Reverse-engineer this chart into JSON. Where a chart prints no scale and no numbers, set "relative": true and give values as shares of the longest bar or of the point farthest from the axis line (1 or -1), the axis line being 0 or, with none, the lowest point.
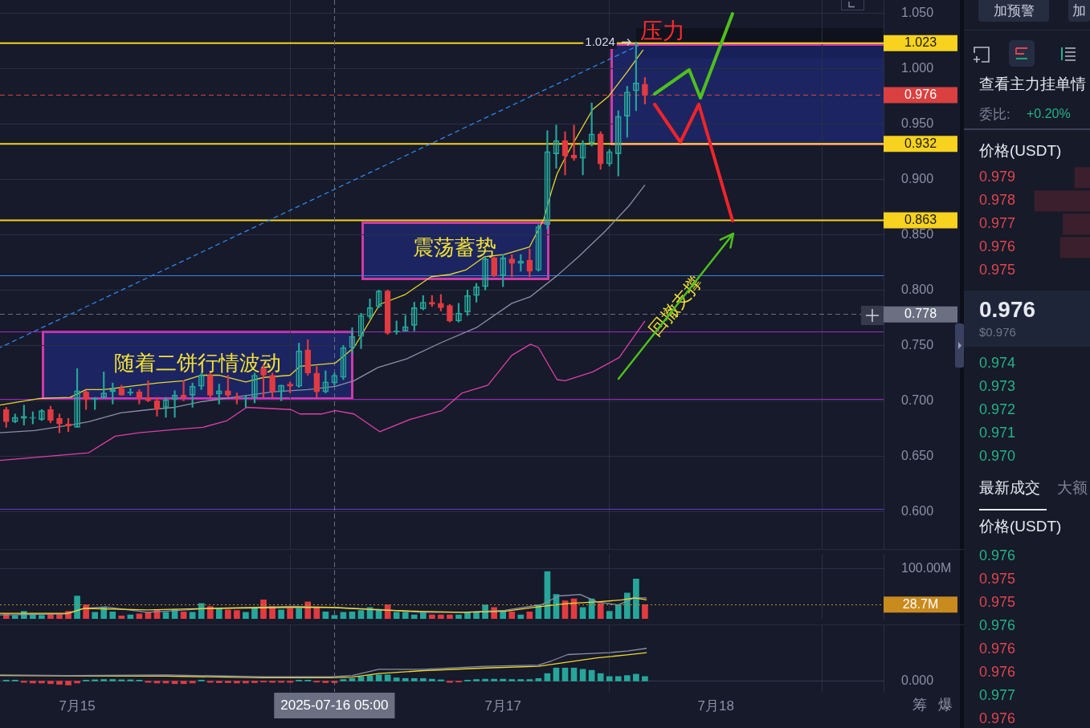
{
  "chart_data": [
    {
      "type": "candlestick",
      "x": [
        "2025-07-14T16:00",
        "2025-07-14T17:00",
        "2025-07-14T18:00",
        "2025-07-14T19:00",
        "2025-07-14T20:00",
        "2025-07-14T21:00",
        "2025-07-14T22:00",
        "2025-07-14T23:00",
        "2025-07-15T00:00",
        "2025-07-15T01:00",
        "2025-07-15T02:00",
        "2025-07-15T03:00",
        "2025-07-15T04:00",
        "2025-07-15T05:00",
        "2025-07-15T06:00",
        "2025-07-15T07:00",
        "2025-07-15T08:00",
        "2025-07-15T09:00",
        "2025-07-15T10:00",
        "2025-07-15T11:00",
        "2025-07-15T12:00",
        "2025-07-15T13:00",
        "2025-07-15T14:00",
        "2025-07-15T15:00",
        "2025-07-15T16:00",
        "2025-07-15T17:00",
        "2025-07-15T18:00",
        "2025-07-15T19:00",
        "2025-07-15T20:00",
        "2025-07-15T21:00",
        "2025-07-15T22:00",
        "2025-07-15T23:00",
        "2025-07-16T00:00",
        "2025-07-16T01:00",
        "2025-07-16T02:00",
        "2025-07-16T03:00",
        "2025-07-16T04:00",
        "2025-07-16T05:00",
        "2025-07-16T06:00",
        "2025-07-16T07:00",
        "2025-07-16T08:00",
        "2025-07-16T09:00",
        "2025-07-16T10:00",
        "2025-07-16T11:00",
        "2025-07-16T12:00",
        "2025-07-16T13:00",
        "2025-07-16T14:00",
        "2025-07-16T15:00",
        "2025-07-16T16:00",
        "2025-07-16T17:00",
        "2025-07-16T18:00",
        "2025-07-16T19:00",
        "2025-07-16T20:00",
        "2025-07-16T21:00",
        "2025-07-16T22:00",
        "2025-07-16T23:00",
        "2025-07-17T00:00",
        "2025-07-17T01:00",
        "2025-07-17T02:00",
        "2025-07-17T03:00",
        "2025-07-17T04:00",
        "2025-07-17T05:00",
        "2025-07-17T06:00",
        "2025-07-17T07:00",
        "2025-07-17T08:00",
        "2025-07-17T09:00",
        "2025-07-17T10:00",
        "2025-07-17T11:00",
        "2025-07-17T12:00",
        "2025-07-17T13:00",
        "2025-07-17T14:00",
        "2025-07-17T15:00",
        "2025-07-17T16:00"
      ],
      "ohlc": [
        [
          0.692,
          0.694,
          0.676,
          0.681
        ],
        [
          0.681,
          0.688,
          0.68,
          0.685
        ],
        [
          0.684,
          0.696,
          0.678,
          0.686
        ],
        [
          0.684,
          0.69,
          0.679,
          0.685
        ],
        [
          0.683,
          0.692,
          0.682,
          0.691
        ],
        [
          0.692,
          0.695,
          0.68,
          0.682
        ],
        [
          0.684,
          0.688,
          0.671,
          0.679
        ],
        [
          0.679,
          0.684,
          0.672,
          0.677
        ],
        [
          0.676,
          0.729,
          0.676,
          0.709
        ],
        [
          0.708,
          0.709,
          0.692,
          0.701
        ],
        [
          0.701,
          0.703,
          0.692,
          0.702
        ],
        [
          0.703,
          0.726,
          0.702,
          0.707
        ],
        [
          0.708,
          0.716,
          0.697,
          0.71
        ],
        [
          0.711,
          0.714,
          0.705,
          0.705
        ],
        [
          0.707,
          0.711,
          0.705,
          0.708
        ],
        [
          0.708,
          0.71,
          0.697,
          0.702
        ],
        [
          0.703,
          0.718,
          0.699,
          0.7
        ],
        [
          0.7,
          0.703,
          0.686,
          0.692
        ],
        [
          0.694,
          0.703,
          0.685,
          0.701
        ],
        [
          0.701,
          0.709,
          0.685,
          0.705
        ],
        [
          0.705,
          0.718,
          0.7,
          0.703
        ],
        [
          0.705,
          0.716,
          0.694,
          0.713
        ],
        [
          0.713,
          0.725,
          0.71,
          0.723
        ],
        [
          0.723,
          0.725,
          0.703,
          0.705
        ],
        [
          0.706,
          0.715,
          0.697,
          0.709
        ],
        [
          0.709,
          0.723,
          0.703,
          0.705
        ],
        [
          0.703,
          0.707,
          0.697,
          0.702
        ],
        [
          0.702,
          0.705,
          0.694,
          0.703
        ],
        [
          0.703,
          0.725,
          0.698,
          0.723
        ],
        [
          0.729,
          0.732,
          0.703,
          0.723
        ],
        [
          0.723,
          0.725,
          0.703,
          0.708
        ],
        [
          0.708,
          0.714,
          0.7,
          0.714
        ],
        [
          0.715,
          0.717,
          0.707,
          0.713
        ],
        [
          0.713,
          0.752,
          0.712,
          0.745
        ],
        [
          0.746,
          0.755,
          0.723,
          0.725
        ],
        [
          0.725,
          0.731,
          0.703,
          0.708
        ],
        [
          0.708,
          0.727,
          0.707,
          0.717
        ],
        [
          0.716,
          0.725,
          0.714,
          0.723
        ],
        [
          0.721,
          0.75,
          0.719,
          0.748
        ],
        [
          0.748,
          0.766,
          0.743,
          0.758
        ],
        [
          0.758,
          0.779,
          0.747,
          0.777
        ],
        [
          0.776,
          0.792,
          0.774,
          0.784
        ],
        [
          0.785,
          0.8,
          0.784,
          0.799
        ],
        [
          0.799,
          0.8,
          0.76,
          0.761
        ],
        [
          0.762,
          0.772,
          0.76,
          0.763
        ],
        [
          0.763,
          0.777,
          0.763,
          0.767
        ],
        [
          0.768,
          0.789,
          0.763,
          0.784
        ],
        [
          0.783,
          0.795,
          0.782,
          0.789
        ],
        [
          0.789,
          0.795,
          0.785,
          0.787
        ],
        [
          0.788,
          0.796,
          0.781,
          0.784
        ],
        [
          0.786,
          0.787,
          0.771,
          0.772
        ],
        [
          0.772,
          0.788,
          0.771,
          0.779
        ],
        [
          0.78,
          0.8,
          0.777,
          0.795
        ],
        [
          0.795,
          0.806,
          0.789,
          0.803
        ],
        [
          0.803,
          0.83,
          0.8,
          0.828
        ],
        [
          0.829,
          0.83,
          0.812,
          0.813
        ],
        [
          0.813,
          0.832,
          0.803,
          0.829
        ],
        [
          0.828,
          0.832,
          0.812,
          0.824
        ],
        [
          0.824,
          0.832,
          0.817,
          0.826
        ],
        [
          0.827,
          0.837,
          0.812,
          0.817
        ],
        [
          0.818,
          0.859,
          0.817,
          0.857
        ],
        [
          0.859,
          0.944,
          0.855,
          0.925
        ],
        [
          0.923,
          0.949,
          0.91,
          0.935
        ],
        [
          0.935,
          0.943,
          0.904,
          0.921
        ],
        [
          0.922,
          0.949,
          0.917,
          0.919
        ],
        [
          0.919,
          0.935,
          0.904,
          0.932
        ],
        [
          0.933,
          0.969,
          0.93,
          0.941
        ],
        [
          0.941,
          0.943,
          0.909,
          0.914
        ],
        [
          0.914,
          0.927,
          0.912,
          0.925
        ],
        [
          0.923,
          0.962,
          0.903,
          0.957
        ],
        [
          0.957,
          0.984,
          0.938,
          0.979
        ],
        [
          0.98,
          1.024,
          0.962,
          0.987
        ],
        [
          0.986,
          0.992,
          0.968,
          0.976
        ]
      ],
      "colors": [
        "#e13b41",
        "#26a69a",
        "#26a69a",
        "#26a69a",
        "#26a69a",
        "#e13b41",
        "#e13b41",
        "#e13b41",
        "#26a69a",
        "#e13b41",
        "#26a69a",
        "#26a69a",
        "#26a69a",
        "#e13b41",
        "#26a69a",
        "#e13b41",
        "#e13b41",
        "#e13b41",
        "#26a69a",
        "#26a69a",
        "#e13b41",
        "#26a69a",
        "#26a69a",
        "#e13b41",
        "#26a69a",
        "#e13b41",
        "#e13b41",
        "#26a69a",
        "#26a69a",
        "#e13b41",
        "#e13b41",
        "#26a69a",
        "#e13b41",
        "#26a69a",
        "#e13b41",
        "#e13b41",
        "#26a69a",
        "#26a69a",
        "#26a69a",
        "#26a69a",
        "#26a69a",
        "#26a69a",
        "#26a69a",
        "#e13b41",
        "#26a69a",
        "#26a69a",
        "#26a69a",
        "#26a69a",
        "#e13b41",
        "#e13b41",
        "#e13b41",
        "#26a69a",
        "#26a69a",
        "#26a69a",
        "#26a69a",
        "#e13b41",
        "#26a69a",
        "#e13b41",
        "#26a69a",
        "#e13b41",
        "#26a69a",
        "#26a69a",
        "#26a69a",
        "#e13b41",
        "#e13b41",
        "#26a69a",
        "#26a69a",
        "#e13b41",
        "#26a69a",
        "#26a69a",
        "#26a69a",
        "#26a69a",
        "#e13b41"
      ],
      "series": [
        {
          "type": "line",
          "color": "#e6d62c",
          "x": [
            "2025-07-14T15:18",
            "2025-07-14T19:48",
            "2025-07-14T23:12",
            "2025-07-15T01:00",
            "2025-07-15T03:00",
            "2025-07-15T07:00",
            "2025-07-15T09:06",
            "2025-07-15T12:00",
            "2025-07-15T14:00",
            "2025-07-15T16:00",
            "2025-07-15T19:00",
            "2025-07-15T21:00",
            "2025-07-16T00:00",
            "2025-07-16T01:06",
            "2025-07-16T05:06",
            "2025-07-16T07:12",
            "2025-07-16T08:06",
            "2025-07-16T10:06",
            "2025-07-16T13:00",
            "2025-07-16T15:54",
            "2025-07-16T18:00",
            "2025-07-16T19:48",
            "2025-07-16T21:54",
            "2025-07-17T00:06",
            "2025-07-17T03:00",
            "2025-07-17T04:36",
            "2025-07-17T05:30",
            "2025-07-17T06:06",
            "2025-07-17T07:18",
            "2025-07-17T10:06",
            "2025-07-17T11:54",
            "2025-07-17T14:00",
            "2025-07-17T15:48"
          ],
          "values": [
            0.696,
            0.702,
            0.703,
            0.71,
            0.71,
            0.714,
            0.716,
            0.718,
            0.723,
            0.723,
            0.717,
            0.721,
            0.723,
            0.731,
            0.734,
            0.748,
            0.76,
            0.787,
            0.796,
            0.812,
            0.814,
            0.818,
            0.83,
            0.832,
            0.839,
            0.864,
            0.89,
            0.905,
            0.924,
            0.963,
            0.975,
            0.997,
            1.017
          ]
        },
        {
          "type": "line",
          "color": "#8990a8",
          "x": [
            "2025-07-14T15:18",
            "2025-07-14T19:12",
            "2025-07-14T23:12",
            "2025-07-15T01:18",
            "2025-07-15T04:54",
            "2025-07-15T08:12",
            "2025-07-15T11:00",
            "2025-07-15T13:54",
            "2025-07-15T18:30",
            "2025-07-15T22:06",
            "2025-07-16T02:00",
            "2025-07-16T05:06",
            "2025-07-16T07:12",
            "2025-07-16T09:54",
            "2025-07-16T13:12",
            "2025-07-16T16:54",
            "2025-07-16T21:00",
            "2025-07-17T01:00",
            "2025-07-17T03:06",
            "2025-07-17T06:06",
            "2025-07-17T08:30",
            "2025-07-17T11:30",
            "2025-07-17T14:12",
            "2025-07-17T16:00"
          ],
          "values": [
            0.671,
            0.673,
            0.678,
            0.681,
            0.689,
            0.692,
            0.694,
            0.699,
            0.704,
            0.708,
            0.71,
            0.713,
            0.718,
            0.73,
            0.738,
            0.752,
            0.766,
            0.788,
            0.794,
            0.813,
            0.83,
            0.853,
            0.876,
            0.895
          ]
        },
        {
          "type": "line",
          "color": "#e03fa8",
          "x": [
            "2025-07-14T15:18",
            "2025-07-15T01:18",
            "2025-07-15T04:18",
            "2025-07-15T07:00",
            "2025-07-15T11:00",
            "2025-07-15T14:12",
            "2025-07-15T16:54",
            "2025-07-15T19:06",
            "2025-07-16T00:06",
            "2025-07-16T01:06",
            "2025-07-16T03:30",
            "2025-07-16T05:06",
            "2025-07-16T07:12",
            "2025-07-16T10:06",
            "2025-07-16T13:30",
            "2025-07-16T17:06",
            "2025-07-16T19:24",
            "2025-07-16T22:18",
            "2025-07-17T01:00",
            "2025-07-17T03:06",
            "2025-07-17T04:00",
            "2025-07-17T06:06",
            "2025-07-17T07:00",
            "2025-07-17T10:06",
            "2025-07-17T13:06",
            "2025-07-17T16:00"
          ],
          "values": [
            0.646,
            0.653,
            0.668,
            0.671,
            0.674,
            0.676,
            0.682,
            0.694,
            0.692,
            0.688,
            0.688,
            0.691,
            0.688,
            0.672,
            0.683,
            0.691,
            0.707,
            0.714,
            0.741,
            0.751,
            0.748,
            0.719,
            0.718,
            0.726,
            0.739,
            0.772
          ]
        },
        {
          "type": "line",
          "color": "#2f86e8",
          "line_style": "dashed",
          "x": [
            "2025-07-14T15:18",
            "2025-07-17T15:18"
          ],
          "values": [
            0.748,
            1.021
          ]
        }
      ],
      "xlim": [
        "2025-07-14T15:18",
        "2025-07-18T18:54"
      ],
      "xticks": [
        {
          "value": "2025-07-15",
          "label": null
        },
        {
          "value": "2025-07-17",
          "label": null
        },
        {
          "value": "2025-07-18",
          "label": null
        }
      ],
      "ylim": [
        0.566,
        1.062
      ],
      "yticks": [
        {
          "value": 0.6,
          "label": "0.600"
        },
        {
          "value": 0.65,
          "label": "0.650"
        },
        {
          "value": 0.7,
          "label": "0.700"
        },
        {
          "value": 0.75,
          "label": "0.750"
        },
        {
          "value": 0.8,
          "label": "0.800"
        },
        {
          "value": 0.85,
          "label": "0.850"
        },
        {
          "value": 0.9,
          "label": "0.900"
        },
        {
          "value": 0.95,
          "label": "0.950"
        },
        {
          "value": 1,
          "label": "1.000"
        },
        {
          "value": 1.05,
          "label": "1.050"
        }
      ],
      "grid": true,
      "tick_labels": "y",
      "ref_lines": [
        {
          "axis": "y",
          "value": 1.023,
          "label": "1.023",
          "color": "#f7d21e"
        },
        {
          "axis": "y",
          "value": 0.976,
          "label": "0.976",
          "color": "#d9403f",
          "line_style": "dashed"
        },
        {
          "axis": "y",
          "value": 0.932,
          "label": "0.932",
          "color": "#f7d21e"
        },
        {
          "axis": "y",
          "value": 0.863,
          "label": "0.863",
          "color": "#f7d21e"
        },
        {
          "axis": "y",
          "value": 0.813,
          "color": "#3f7ee0"
        },
        {
          "axis": "y",
          "value": 0.778,
          "label": "0.778",
          "color": "#6a6f82",
          "line_style": "dashed"
        },
        {
          "axis": "y",
          "value": 0.762,
          "color": "#a628c9"
        },
        {
          "axis": "y",
          "value": 0.701,
          "color": "#a628c9"
        },
        {
          "axis": "y",
          "value": 0.602,
          "color": "#6c35d1"
        },
        {
          "axis": "x",
          "value": "2025-07-16T05:00",
          "color": "#6a6f82",
          "line_style": "dashed"
        }
      ],
      "annotations": [
        {
          "text": "1.024",
          "x": "2025-07-17T15:00",
          "y": 1.024
        },
        {
          "text": "压力",
          "x": "2025-07-17T18:00",
          "y": 1.023
        },
        "随着二饼行情波动",
        "震荡蓄势",
        "回撤支撑"
      ]
    },
    {
      "type": "bar",
      "x": [
        "2025-07-14T16:00",
        "2025-07-14T17:00",
        "2025-07-14T18:00",
        "2025-07-14T19:00",
        "2025-07-14T20:00",
        "2025-07-14T21:00",
        "2025-07-14T22:00",
        "2025-07-14T23:00",
        "2025-07-15T00:00",
        "2025-07-15T01:00",
        "2025-07-15T02:00",
        "2025-07-15T03:00",
        "2025-07-15T04:00",
        "2025-07-15T05:00",
        "2025-07-15T06:00",
        "2025-07-15T07:00",
        "2025-07-15T08:00",
        "2025-07-15T09:00",
        "2025-07-15T10:00",
        "2025-07-15T11:00",
        "2025-07-15T12:00",
        "2025-07-15T13:00",
        "2025-07-15T14:00",
        "2025-07-15T15:00",
        "2025-07-15T16:00",
        "2025-07-15T17:00",
        "2025-07-15T18:00",
        "2025-07-15T19:00",
        "2025-07-15T20:00",
        "2025-07-15T21:00",
        "2025-07-15T22:00",
        "2025-07-15T23:00",
        "2025-07-16T00:00",
        "2025-07-16T01:00",
        "2025-07-16T02:00",
        "2025-07-16T03:00",
        "2025-07-16T04:00",
        "2025-07-16T05:00",
        "2025-07-16T06:00",
        "2025-07-16T07:00",
        "2025-07-16T08:00",
        "2025-07-16T09:00",
        "2025-07-16T10:00",
        "2025-07-16T11:00",
        "2025-07-16T12:00",
        "2025-07-16T13:00",
        "2025-07-16T14:00",
        "2025-07-16T15:00",
        "2025-07-16T16:00",
        "2025-07-16T17:00",
        "2025-07-16T18:00",
        "2025-07-16T19:00",
        "2025-07-16T20:00",
        "2025-07-16T21:00",
        "2025-07-16T22:00",
        "2025-07-16T23:00",
        "2025-07-17T00:00",
        "2025-07-17T01:00",
        "2025-07-17T02:00",
        "2025-07-17T03:00",
        "2025-07-17T04:00",
        "2025-07-17T05:00",
        "2025-07-17T06:00",
        "2025-07-17T07:00",
        "2025-07-17T08:00",
        "2025-07-17T09:00",
        "2025-07-17T10:00",
        "2025-07-17T11:00",
        "2025-07-17T12:00",
        "2025-07-17T13:00",
        "2025-07-17T14:00",
        "2025-07-17T15:00",
        "2025-07-17T16:00"
      ],
      "values": [
        10,
        7,
        15,
        10,
        7,
        10,
        10,
        15,
        46,
        28,
        13,
        23,
        14,
        6,
        8,
        10,
        13,
        19,
        13,
        19,
        14,
        13,
        31,
        25,
        21,
        18,
        17,
        13,
        21,
        38,
        25,
        18,
        21,
        21,
        34,
        23,
        14,
        7,
        13,
        14,
        17,
        23,
        18,
        28,
        13,
        13,
        8,
        13,
        8,
        8,
        8,
        8,
        13,
        13,
        28,
        23,
        17,
        14,
        8,
        14,
        28,
        95,
        49,
        36,
        40,
        23,
        40,
        31,
        15,
        28,
        52,
        80,
        28.7
      ],
      "colors": [
        "#e13b41",
        "#26a69a",
        "#26a69a",
        "#26a69a",
        "#26a69a",
        "#e13b41",
        "#e13b41",
        "#e13b41",
        "#26a69a",
        "#e13b41",
        "#26a69a",
        "#26a69a",
        "#26a69a",
        "#e13b41",
        "#26a69a",
        "#e13b41",
        "#e13b41",
        "#e13b41",
        "#26a69a",
        "#26a69a",
        "#e13b41",
        "#26a69a",
        "#26a69a",
        "#e13b41",
        "#26a69a",
        "#e13b41",
        "#e13b41",
        "#26a69a",
        "#26a69a",
        "#e13b41",
        "#e13b41",
        "#26a69a",
        "#e13b41",
        "#26a69a",
        "#e13b41",
        "#e13b41",
        "#26a69a",
        "#26a69a",
        "#26a69a",
        "#26a69a",
        "#26a69a",
        "#26a69a",
        "#26a69a",
        "#e13b41",
        "#26a69a",
        "#26a69a",
        "#26a69a",
        "#26a69a",
        "#e13b41",
        "#e13b41",
        "#e13b41",
        "#26a69a",
        "#26a69a",
        "#26a69a",
        "#26a69a",
        "#e13b41",
        "#26a69a",
        "#e13b41",
        "#26a69a",
        "#e13b41",
        "#26a69a",
        "#26a69a",
        "#26a69a",
        "#e13b41",
        "#e13b41",
        "#26a69a",
        "#26a69a",
        "#e13b41",
        "#26a69a",
        "#26a69a",
        "#26a69a",
        "#26a69a",
        "#e13b41"
      ],
      "series": [
        {
          "type": "line",
          "color": "#f0d82a",
          "x": [
            "2025-07-14T15:18",
            "2025-07-14T22:54",
            "2025-07-15T00:48",
            "2025-07-15T07:54",
            "2025-07-15T15:00",
            "2025-07-16T00:30",
            "2025-07-16T04:42",
            "2025-07-16T09:54",
            "2025-07-16T14:42",
            "2025-07-16T19:24",
            "2025-07-17T00:12",
            "2025-07-17T03:54",
            "2025-07-17T07:18",
            "2025-07-17T10:36",
            "2025-07-17T13:24",
            "2025-07-17T14:48",
            "2025-07-17T16:12"
          ],
          "values": [
            11,
            11,
            21,
            18,
            21,
            23,
            23,
            18,
            15,
            13,
            15,
            24,
            31,
            34,
            38,
            42,
            38
          ]
        },
        {
          "type": "line",
          "color": "#8990a8",
          "x": [
            "2025-07-14T15:18",
            "2025-07-14T22:54",
            "2025-07-15T00:48",
            "2025-07-15T03:12",
            "2025-07-15T07:54",
            "2025-07-15T15:00",
            "2025-07-16T00:30",
            "2025-07-16T04:42",
            "2025-07-16T09:54",
            "2025-07-16T14:42",
            "2025-07-16T19:24",
            "2025-07-17T00:12",
            "2025-07-17T04:24",
            "2025-07-17T06:18",
            "2025-07-17T08:42",
            "2025-07-17T10:36",
            "2025-07-17T13:00",
            "2025-07-17T14:48",
            "2025-07-17T16:12"
          ],
          "values": [
            8,
            10,
            21,
            24,
            13,
            21,
            25,
            23,
            19,
            13,
            13,
            17,
            29,
            46,
            49,
            34,
            28,
            42,
            42
          ]
        }
      ],
      "xlim": [
        "2025-07-14T15:18",
        "2025-07-18T18:54"
      ],
      "xticks": [
        {
          "value": "2025-07-15",
          "label": null
        },
        {
          "value": "2025-07-17",
          "label": null
        },
        {
          "value": "2025-07-18",
          "label": null
        }
      ],
      "ylim": [
        0,
        130
      ],
      "yticks": [
        {
          "value": 100,
          "label": "100.00M"
        }
      ],
      "grid": true,
      "tick_labels": "y",
      "ref_lines": [
        {
          "axis": "y",
          "value": 28.7,
          "label": "28.7M",
          "color": "#c98a1e",
          "line_style": "dotted"
        },
        {
          "axis": "x",
          "value": "2025-07-16T05:00",
          "color": "#6a6f82",
          "line_style": "dashed"
        }
      ]
    },
    {
      "type": "bar",
      "relative": true,
      "x": [
        "2025-07-14T16:00",
        "2025-07-14T17:00",
        "2025-07-14T18:00",
        "2025-07-14T19:00",
        "2025-07-14T20:00",
        "2025-07-14T21:00",
        "2025-07-14T22:00",
        "2025-07-14T23:00",
        "2025-07-15T00:00",
        "2025-07-15T01:00",
        "2025-07-15T02:00",
        "2025-07-15T03:00",
        "2025-07-15T04:00",
        "2025-07-15T05:00",
        "2025-07-15T06:00",
        "2025-07-15T07:00",
        "2025-07-15T08:00",
        "2025-07-15T09:00",
        "2025-07-15T10:00",
        "2025-07-15T11:00",
        "2025-07-15T12:00",
        "2025-07-15T13:00",
        "2025-07-15T14:00",
        "2025-07-15T15:00",
        "2025-07-15T16:00",
        "2025-07-15T17:00",
        "2025-07-15T18:00",
        "2025-07-15T19:00",
        "2025-07-15T20:00",
        "2025-07-15T21:00",
        "2025-07-15T22:00",
        "2025-07-15T23:00",
        "2025-07-16T00:00",
        "2025-07-16T01:00",
        "2025-07-16T02:00",
        "2025-07-16T03:00",
        "2025-07-16T04:00",
        "2025-07-16T05:00",
        "2025-07-16T06:00",
        "2025-07-16T07:00",
        "2025-07-16T08:00",
        "2025-07-16T09:00",
        "2025-07-16T10:00",
        "2025-07-16T11:00",
        "2025-07-16T12:00",
        "2025-07-16T13:00",
        "2025-07-16T14:00",
        "2025-07-16T15:00",
        "2025-07-16T16:00",
        "2025-07-16T17:00",
        "2025-07-16T18:00",
        "2025-07-16T19:00",
        "2025-07-16T20:00",
        "2025-07-16T21:00",
        "2025-07-16T22:00",
        "2025-07-16T23:00",
        "2025-07-17T00:00",
        "2025-07-17T01:00",
        "2025-07-17T02:00",
        "2025-07-17T03:00",
        "2025-07-17T04:00",
        "2025-07-17T05:00",
        "2025-07-17T06:00",
        "2025-07-17T07:00",
        "2025-07-17T08:00",
        "2025-07-17T09:00",
        "2025-07-17T10:00",
        "2025-07-17T11:00",
        "2025-07-17T12:00",
        "2025-07-17T13:00",
        "2025-07-17T14:00",
        "2025-07-17T15:00",
        "2025-07-17T16:00"
      ],
      "values": [
        0.03,
        0.03,
        -0.04,
        -0.06,
        -0.06,
        -0.08,
        -0.1,
        -0.12,
        -0.06,
        0.03,
        0.04,
        0.05,
        0.05,
        0.04,
        0.04,
        0.03,
        -0.04,
        -0.06,
        -0.06,
        -0.08,
        -0.08,
        -0.06,
        0.03,
        -0.04,
        -0.05,
        -0.05,
        -0.06,
        -0.06,
        -0.05,
        -0.03,
        -0.04,
        -0.04,
        -0.04,
        0.03,
        0.03,
        -0.03,
        -0.05,
        -0.05,
        0.05,
        0.08,
        0.13,
        0.17,
        0.19,
        0.19,
        0.1,
        0.08,
        0.08,
        0.08,
        0.06,
        0.04,
        -0.04,
        -0.03,
        0.03,
        0.05,
        0.06,
        0.06,
        0.06,
        0.05,
        0.05,
        0.05,
        0.08,
        0.23,
        0.4,
        0.4,
        0.4,
        0.36,
        0.33,
        0.23,
        0.14,
        0.14,
        0.17,
        0.21,
        0.14
      ],
      "colors": [
        "#26a69a",
        "#26a69a",
        "#e13b41",
        "#e13b41",
        "#e13b41",
        "#e13b41",
        "#e13b41",
        "#e13b41",
        "#e13b41",
        "#26a69a",
        "#26a69a",
        "#26a69a",
        "#26a69a",
        "#26a69a",
        "#26a69a",
        "#26a69a",
        "#e13b41",
        "#e13b41",
        "#e13b41",
        "#e13b41",
        "#e13b41",
        "#e13b41",
        "#26a69a",
        "#e13b41",
        "#e13b41",
        "#e13b41",
        "#e13b41",
        "#e13b41",
        "#e13b41",
        "#e13b41",
        "#e13b41",
        "#e13b41",
        "#e13b41",
        "#26a69a",
        "#26a69a",
        "#e13b41",
        "#e13b41",
        "#e13b41",
        "#26a69a",
        "#26a69a",
        "#26a69a",
        "#26a69a",
        "#26a69a",
        "#26a69a",
        "#26a69a",
        "#26a69a",
        "#26a69a",
        "#26a69a",
        "#26a69a",
        "#26a69a",
        "#e13b41",
        "#e13b41",
        "#26a69a",
        "#26a69a",
        "#26a69a",
        "#26a69a",
        "#26a69a",
        "#26a69a",
        "#26a69a",
        "#26a69a",
        "#26a69a",
        "#26a69a",
        "#26a69a",
        "#26a69a",
        "#26a69a",
        "#26a69a",
        "#26a69a",
        "#26a69a",
        "#26a69a",
        "#26a69a",
        "#26a69a",
        "#26a69a",
        "#26a69a"
      ],
      "series": [
        {
          "type": "line",
          "color": "#8990a8",
          "x": [
            "2025-07-14T15:18",
            "2025-07-14T23:00",
            "2025-07-15T10:00",
            "2025-07-15T21:00",
            "2025-07-16T04:30",
            "2025-07-16T07:00",
            "2025-07-16T10:00",
            "2025-07-16T15:00",
            "2025-07-16T22:00",
            "2025-07-17T04:00",
            "2025-07-17T05:30",
            "2025-07-17T07:18",
            "2025-07-17T09:00",
            "2025-07-17T12:00",
            "2025-07-17T14:00",
            "2025-07-17T16:12"
          ],
          "values": [
            0.19,
            0.17,
            0.19,
            0.13,
            0.13,
            0.17,
            0.36,
            0.36,
            0.45,
            0.49,
            0.62,
            0.81,
            0.83,
            0.87,
            0.92,
            1
          ]
        },
        {
          "type": "line",
          "color": "#f0d82a",
          "x": [
            "2025-07-14T15:18",
            "2025-07-15T00:00",
            "2025-07-15T10:00",
            "2025-07-15T21:00",
            "2025-07-16T04:30",
            "2025-07-16T07:00",
            "2025-07-16T10:00",
            "2025-07-16T15:00",
            "2025-07-16T22:00",
            "2025-07-17T04:00",
            "2025-07-17T07:18",
            "2025-07-17T10:36",
            "2025-07-17T14:00",
            "2025-07-17T16:12"
          ],
          "values": [
            0.17,
            0.16,
            0.15,
            0.1,
            0.1,
            0.12,
            0.23,
            0.32,
            0.4,
            0.45,
            0.58,
            0.71,
            0.8,
            0.87
          ]
        }
      ],
      "xlim": [
        "2025-07-14T15:18",
        "2025-07-18T18:54"
      ],
      "xticks": [
        {
          "value": "2025-07-15",
          "label": "7月15"
        },
        {
          "value": "2025-07-17",
          "label": "7月17"
        },
        {
          "value": "2025-07-18",
          "label": "7月18"
        }
      ],
      "grid": "x",
      "tick_labels": "x",
      "ref_lines": [
        {
          "axis": "x",
          "value": "2025-07-16T05:00",
          "label": "2025-07-16 05:00",
          "color": "#6a6f82",
          "line_style": "dashed"
        }
      ],
      "annotations": [
        "0.000",
        "筹",
        "爆"
      ]
    },
    {
      "type": "other",
      "annotations": [
        "加预警",
        "加",
        "查看主力挂单情",
        "委比:",
        "+0.20%"
      ]
    },
    {
      "type": "bar",
      "orientation": "horizontal",
      "relative": true,
      "title": "价格(USDT)",
      "categories": [
        "0.979",
        "0.978",
        "0.977",
        "0.976",
        "0.975",
        null,
        null,
        null,
        "0.974",
        "0.973",
        "0.972",
        "0.971",
        "0.970"
      ],
      "values": [
        0.28,
        1,
        0.49,
        0.54,
        null,
        null,
        null,
        null,
        null,
        null,
        null,
        null,
        null
      ],
      "color": "#3b1f2d",
      "tick_labels": "y"
    },
    {
      "type": "other",
      "annotations": [
        "0.976",
        "$0.976"
      ]
    },
    {
      "type": "other",
      "annotations": [
        "最新成交",
        "大额",
        "价格(USDT)",
        "0.976",
        "0.975",
        "0.975",
        "0.976",
        "0.976",
        "0.976",
        "0.977",
        "0.976"
      ]
    }
  ]
}
